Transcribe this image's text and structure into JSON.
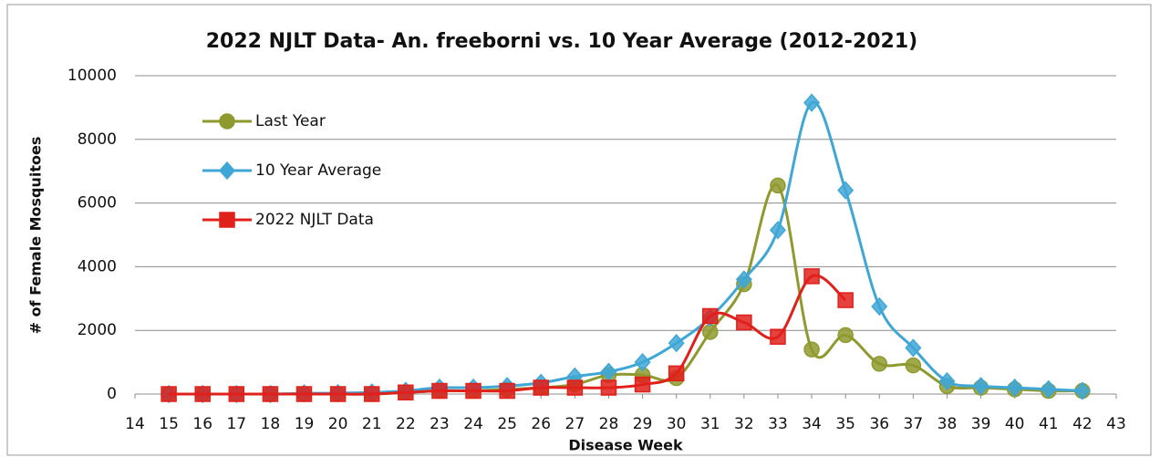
{
  "chart_data": {
    "type": "line",
    "title": "2022 NJLT Data- An. freeborni vs. 10 Year Average (2012-2021)",
    "xlabel": "Disease Week",
    "ylabel": "# of Female Mosquitoes",
    "x": [
      15,
      16,
      17,
      18,
      19,
      20,
      21,
      22,
      23,
      24,
      25,
      26,
      27,
      28,
      29,
      30,
      31,
      32,
      33,
      34,
      35,
      36,
      37,
      38,
      39,
      40,
      41,
      42
    ],
    "xlim": [
      14,
      43
    ],
    "xticks": [
      14,
      15,
      16,
      17,
      18,
      19,
      20,
      21,
      22,
      23,
      24,
      25,
      26,
      27,
      28,
      29,
      30,
      31,
      32,
      33,
      34,
      35,
      36,
      37,
      38,
      39,
      40,
      41,
      42,
      43
    ],
    "ylim": [
      0,
      10000
    ],
    "yticks": [
      0,
      2000,
      4000,
      6000,
      8000,
      10000
    ],
    "grid": true,
    "legend": "upper left",
    "series": [
      {
        "name": "Last Year",
        "color": "#8f9a2e",
        "marker": "circle",
        "values": [
          0,
          0,
          0,
          0,
          0,
          0,
          0,
          50,
          100,
          100,
          150,
          200,
          300,
          600,
          600,
          500,
          1950,
          3450,
          6550,
          1400,
          1850,
          950,
          900,
          250,
          200,
          150,
          100,
          100
        ]
      },
      {
        "name": "10 Year Average",
        "color": "#3fa7d6",
        "marker": "diamond",
        "values": [
          0,
          0,
          0,
          0,
          20,
          30,
          50,
          100,
          200,
          200,
          250,
          350,
          550,
          700,
          1000,
          1600,
          2400,
          3600,
          5150,
          9150,
          6400,
          2750,
          1450,
          400,
          250,
          200,
          150,
          100
        ]
      },
      {
        "name": "2022 NJLT Data",
        "color": "#e0201b",
        "marker": "square",
        "values": [
          0,
          0,
          0,
          0,
          0,
          0,
          0,
          50,
          100,
          100,
          100,
          200,
          200,
          200,
          300,
          650,
          2450,
          2250,
          1800,
          3700,
          2950,
          null,
          null,
          null,
          null,
          null,
          null,
          null
        ]
      }
    ]
  }
}
